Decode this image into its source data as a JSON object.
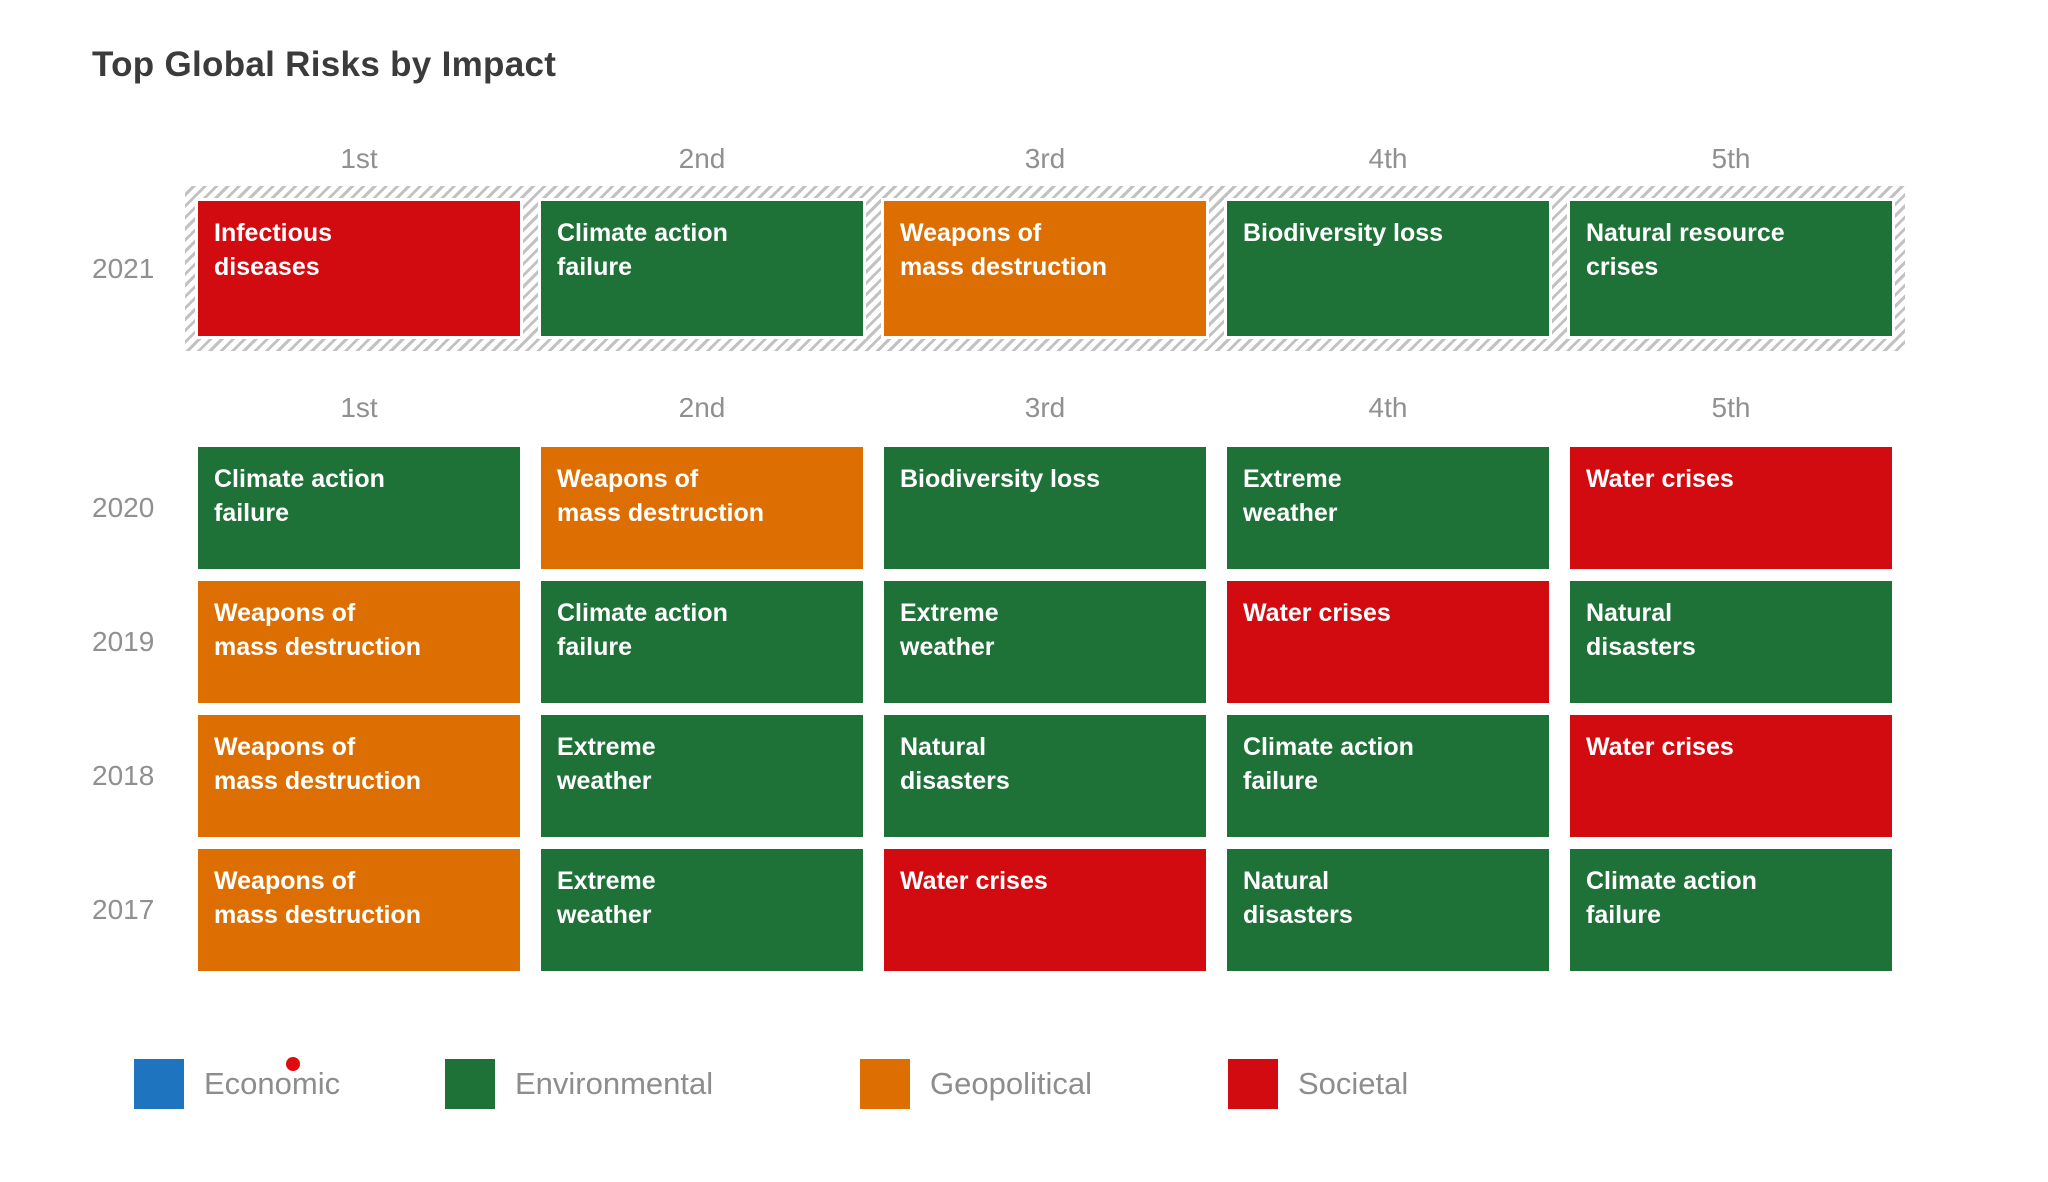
{
  "title": "Top Global Risks by Impact",
  "rank_headers": [
    "1st",
    "2nd",
    "3rd",
    "4th",
    "5th"
  ],
  "legend": [
    {
      "label": "Economic",
      "category": "Economic"
    },
    {
      "label": "Environmental",
      "category": "Environmental"
    },
    {
      "label": "Geopolitical",
      "category": "Geopolitical"
    },
    {
      "label": "Societal",
      "category": "Societal"
    }
  ],
  "annotations": {
    "red_dot": {
      "color": "#e00b10",
      "over": "Economic"
    }
  },
  "colors": {
    "title_text": "#3b3b3b",
    "muted_text": "#909090",
    "cell_text": "#ffffff",
    "hatch_stripe": "#c2c2c2"
  },
  "chart_data": {
    "type": "table",
    "title": "Top Global Risks by Impact",
    "columns": [
      "1st",
      "2nd",
      "3rd",
      "4th",
      "5th"
    ],
    "legend_position": "bottom",
    "categories": [
      "Economic",
      "Environmental",
      "Geopolitical",
      "Societal"
    ],
    "category_colors": {
      "Economic": "#1f74c0",
      "Environmental": "#1e7137",
      "Geopolitical": "#dd6f02",
      "Societal": "#d20b11"
    },
    "rows": [
      {
        "year": "2021",
        "highlight_hatched": true,
        "ranks": [
          {
            "risk": "Infectious diseases",
            "display": "Infectious\ndiseases",
            "category": "Societal"
          },
          {
            "risk": "Climate action failure",
            "display": "Climate action\nfailure",
            "category": "Environmental"
          },
          {
            "risk": "Weapons of mass destruction",
            "display": "Weapons of\nmass destruction",
            "category": "Geopolitical"
          },
          {
            "risk": "Biodiversity loss",
            "display": "Biodiversity loss",
            "category": "Environmental"
          },
          {
            "risk": "Natural resource crises",
            "display": "Natural resource\ncrises",
            "category": "Environmental"
          }
        ]
      },
      {
        "year": "2020",
        "highlight_hatched": false,
        "ranks": [
          {
            "risk": "Climate action failure",
            "display": "Climate action\nfailure",
            "category": "Environmental"
          },
          {
            "risk": "Weapons of mass destruction",
            "display": "Weapons of\nmass destruction",
            "category": "Geopolitical"
          },
          {
            "risk": "Biodiversity loss",
            "display": "Biodiversity loss",
            "category": "Environmental"
          },
          {
            "risk": "Extreme weather",
            "display": "Extreme\nweather",
            "category": "Environmental"
          },
          {
            "risk": "Water crises",
            "display": "Water crises",
            "category": "Societal"
          }
        ]
      },
      {
        "year": "2019",
        "highlight_hatched": false,
        "ranks": [
          {
            "risk": "Weapons of mass destruction",
            "display": "Weapons of\nmass destruction",
            "category": "Geopolitical"
          },
          {
            "risk": "Climate action failure",
            "display": "Climate action\nfailure",
            "category": "Environmental"
          },
          {
            "risk": "Extreme weather",
            "display": "Extreme\nweather",
            "category": "Environmental"
          },
          {
            "risk": "Water crises",
            "display": "Water crises",
            "category": "Societal"
          },
          {
            "risk": "Natural disasters",
            "display": "Natural\ndisasters",
            "category": "Environmental"
          }
        ]
      },
      {
        "year": "2018",
        "highlight_hatched": false,
        "ranks": [
          {
            "risk": "Weapons of mass destruction",
            "display": "Weapons of\nmass destruction",
            "category": "Geopolitical"
          },
          {
            "risk": "Extreme weather",
            "display": "Extreme\nweather",
            "category": "Environmental"
          },
          {
            "risk": "Natural disasters",
            "display": "Natural\ndisasters",
            "category": "Environmental"
          },
          {
            "risk": "Climate action failure",
            "display": "Climate action\nfailure",
            "category": "Environmental"
          },
          {
            "risk": "Water crises",
            "display": "Water crises",
            "category": "Societal"
          }
        ]
      },
      {
        "year": "2017",
        "highlight_hatched": false,
        "ranks": [
          {
            "risk": "Weapons of mass destruction",
            "display": "Weapons of\nmass destruction",
            "category": "Geopolitical"
          },
          {
            "risk": "Extreme weather",
            "display": "Extreme\nweather",
            "category": "Environmental"
          },
          {
            "risk": "Water crises",
            "display": "Water crises",
            "category": "Societal"
          },
          {
            "risk": "Natural disasters",
            "display": "Natural\ndisasters",
            "category": "Environmental"
          },
          {
            "risk": "Climate action failure",
            "display": "Climate action\nfailure",
            "category": "Environmental"
          }
        ]
      }
    ]
  }
}
